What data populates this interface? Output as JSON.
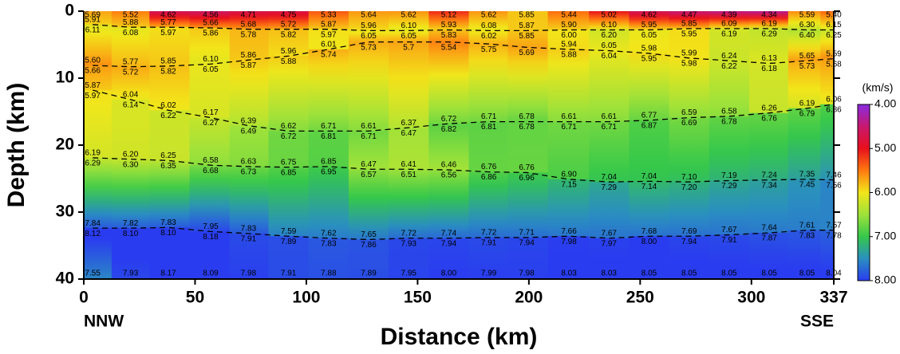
{
  "chart_data": {
    "type": "velocity-section",
    "xlabel": "Distance (km)",
    "ylabel": "Depth (km)",
    "end_labels": [
      "NNW",
      "SSE"
    ],
    "xlim": [
      0,
      337
    ],
    "xticks": [
      0,
      50,
      100,
      150,
      200,
      250,
      300,
      337
    ],
    "ylim": [
      0,
      40
    ],
    "yticks": [
      0,
      10,
      20,
      30,
      40
    ],
    "interface_style": "dashed",
    "colorbar": {
      "label": "(km/s)",
      "lim": [
        4,
        8
      ],
      "ticks": [
        {
          "value": 4,
          "label": "4.00"
        },
        {
          "value": 5,
          "label": "5.00"
        },
        {
          "value": 6,
          "label": "6.00"
        },
        {
          "value": 7,
          "label": "7.00"
        },
        {
          "value": 8,
          "label": "8.00"
        }
      ],
      "colors": [
        "#8a2be2",
        "#c8186e",
        "#e8101c",
        "#ff7a10",
        "#f2e61a",
        "#9ee23a",
        "#35c84a",
        "#2a8fc0",
        "#2a3cf0"
      ]
    },
    "x": [
      4,
      21,
      38,
      57,
      74,
      92,
      110,
      128,
      146,
      164,
      182,
      199,
      218,
      236,
      254,
      272,
      290,
      308,
      325,
      337
    ],
    "surface": {
      "values": [
        5.69,
        5.52,
        4.62,
        4.56,
        4.71,
        4.75,
        5.33,
        5.64,
        5.62,
        5.12,
        5.62,
        5.85,
        5.44,
        5.02,
        4.62,
        4.47,
        4.39,
        4.34,
        5.59,
        5.4
      ],
      "value_labels": [
        "5.69",
        "5.52",
        "4.62",
        "4.56",
        "4.71",
        "4.75",
        "5.33",
        "5.64",
        "5.62",
        "5.12",
        "5.62",
        "5.85",
        "5.44",
        "5.02",
        "4.62",
        "4.47",
        "4.39",
        "4.34",
        "5.59",
        "5.40"
      ]
    },
    "interfaces": [
      {
        "depths": [
          2.0,
          2.4,
          2.4,
          2.5,
          2.7,
          2.7,
          2.7,
          2.9,
          2.9,
          2.8,
          2.9,
          2.9,
          2.8,
          2.8,
          2.8,
          2.6,
          2.6,
          2.6,
          2.8,
          2.8
        ],
        "above": {
          "values": [
            5.91,
            5.88,
            5.77,
            5.66,
            5.68,
            5.72,
            5.87,
            5.96,
            6.1,
            5.93,
            6.08,
            5.87,
            5.9,
            6.1,
            5.95,
            5.85,
            6.09,
            6.19,
            6.3,
            6.15
          ],
          "value_labels": [
            "5.91",
            "5.88",
            "5.77",
            "5.66",
            "5.68",
            "5.72",
            "5.87",
            "5.96",
            "6.10",
            "5.93",
            "6.08",
            "5.87",
            "5.90",
            "6.10",
            "5.95",
            "5.85",
            "6.09",
            "6.19",
            "6.30",
            "6.15"
          ]
        },
        "below": {
          "values": [
            6.11,
            6.08,
            5.97,
            5.86,
            5.78,
            5.82,
            5.97,
            6.05,
            6.05,
            5.83,
            6.02,
            5.85,
            6.0,
            6.2,
            6.05,
            5.95,
            6.19,
            6.29,
            6.4,
            6.25
          ],
          "value_labels": [
            "6.11",
            "6.08",
            "5.97",
            "5.86",
            "5.78",
            "5.82",
            "5.97",
            "6.05",
            "6.05",
            "5.83",
            "6.02",
            "5.85",
            "6.00",
            "6.20",
            "6.05",
            "5.95",
            "6.19",
            "6.29",
            "6.40",
            "6.25"
          ]
        }
      },
      {
        "depths": [
          8.1,
          8.3,
          8.2,
          7.9,
          7.3,
          6.7,
          5.7,
          4.6,
          4.6,
          4.6,
          4.9,
          5.4,
          5.7,
          5.9,
          6.3,
          7.0,
          7.4,
          7.8,
          7.4,
          7.1
        ],
        "above": {
          "values": [
            5.6,
            5.77,
            5.85,
            6.1,
            5.86,
            5.96,
            6.01,
            null,
            null,
            null,
            null,
            null,
            5.94,
            6.05,
            5.98,
            5.99,
            6.24,
            6.13,
            5.65,
            5.59
          ],
          "value_labels": [
            "5.60",
            "5.77",
            "5.85",
            "6.10",
            "5.86",
            "5.96",
            "6.01",
            null,
            null,
            null,
            null,
            null,
            "5.94",
            "6.05",
            "5.98",
            "5.99",
            "6.24",
            "6.13",
            "5.65",
            "5.59"
          ]
        },
        "below": {
          "values": [
            5.66,
            5.72,
            5.82,
            6.05,
            5.87,
            5.88,
            5.74,
            5.73,
            5.7,
            5.54,
            5.75,
            5.69,
            5.88,
            6.04,
            5.95,
            5.98,
            6.22,
            6.18,
            5.73,
            5.68
          ],
          "value_labels": [
            "5.66",
            "5.72",
            "5.82",
            "6.05",
            "5.87",
            "5.88",
            "5.74",
            "5.73",
            "5.7",
            "5.54",
            "5.75",
            "5.69",
            "5.88",
            "6.04",
            "5.95",
            "5.98",
            "6.22",
            "6.18",
            "5.73",
            "5.68"
          ]
        }
      },
      {
        "depths": [
          11.8,
          13.2,
          14.8,
          15.9,
          17.1,
          17.9,
          17.9,
          17.9,
          17.4,
          16.8,
          16.5,
          16.5,
          16.5,
          16.5,
          16.3,
          15.9,
          15.7,
          15.2,
          14.5,
          13.9
        ],
        "above": {
          "values": [
            5.87,
            6.04,
            6.02,
            6.17,
            6.39,
            6.62,
            6.71,
            6.61,
            6.37,
            6.72,
            6.71,
            6.78,
            6.61,
            6.61,
            6.77,
            6.59,
            6.58,
            6.26,
            6.19,
            6.06
          ],
          "value_labels": [
            "5.87",
            "6.04",
            "6.02",
            "6.17",
            "6.39",
            "6.62",
            "6.71",
            "6.61",
            "6.37",
            "6.72",
            "6.71",
            "6.78",
            "6.61",
            "6.61",
            "6.77",
            "6.59",
            "6.58",
            "6.26",
            "6.19",
            "6.06"
          ]
        },
        "below": {
          "values": [
            5.97,
            6.14,
            6.22,
            6.27,
            6.49,
            6.72,
            6.81,
            6.71,
            6.47,
            6.82,
            6.81,
            6.78,
            6.71,
            6.71,
            6.87,
            6.69,
            6.78,
            6.76,
            6.79,
            6.86
          ],
          "value_labels": [
            "5.97",
            "6.14",
            "6.22",
            "6.27",
            "6.49",
            "6.72",
            "6.81",
            "6.71",
            "6.47",
            "6.82",
            "6.81",
            "6.78",
            "6.71",
            "6.71",
            "6.87",
            "6.69",
            "6.78",
            "6.76",
            "6.79",
            "6.86"
          ]
        }
      },
      {
        "depths": [
          21.9,
          22.1,
          22.3,
          23.0,
          23.2,
          23.3,
          23.2,
          23.6,
          23.6,
          23.7,
          24.0,
          24.1,
          25.1,
          25.5,
          25.4,
          25.5,
          25.3,
          25.2,
          25.1,
          25.2
        ],
        "above": {
          "values": [
            6.19,
            6.2,
            6.25,
            6.58,
            6.63,
            6.75,
            6.85,
            6.47,
            6.41,
            6.46,
            6.76,
            6.76,
            6.9,
            7.04,
            7.04,
            7.1,
            7.19,
            7.24,
            7.35,
            7.46
          ],
          "value_labels": [
            "6.19",
            "6.20",
            "6.25",
            "6.58",
            "6.63",
            "6.75",
            "6.85",
            "6.47",
            "6.41",
            "6.46",
            "6.76",
            "6.76",
            "6.90",
            "7.04",
            "7.04",
            "7.10",
            "7.19",
            "7.24",
            "7.35",
            "7.46"
          ]
        },
        "below": {
          "values": [
            6.29,
            6.3,
            6.35,
            6.68,
            6.73,
            6.85,
            6.95,
            6.57,
            6.51,
            6.56,
            6.86,
            6.96,
            7.15,
            7.29,
            7.14,
            7.2,
            7.29,
            7.34,
            7.45,
            7.56
          ],
          "value_labels": [
            "6.29",
            "6.30",
            "6.35",
            "6.68",
            "6.73",
            "6.85",
            "6.95",
            "6.57",
            "6.51",
            "6.56",
            "6.86",
            "6.96",
            "7.15",
            "7.29",
            "7.14",
            "7.20",
            "7.29",
            "7.34",
            "7.45",
            "7.56"
          ]
        }
      },
      {
        "depths": [
          32.4,
          32.4,
          32.3,
          32.9,
          33.2,
          33.6,
          33.9,
          34.1,
          33.9,
          33.9,
          33.8,
          33.8,
          33.6,
          33.9,
          33.6,
          33.6,
          33.4,
          33.1,
          32.7,
          32.7
        ],
        "above": {
          "values": [
            7.84,
            7.82,
            7.83,
            7.95,
            7.83,
            7.59,
            7.62,
            7.65,
            7.72,
            7.74,
            7.72,
            7.71,
            7.66,
            7.67,
            7.68,
            7.69,
            7.67,
            7.64,
            7.61,
            7.57
          ],
          "value_labels": [
            "7.84",
            "7.82",
            "7.83",
            "7.95",
            "7.83",
            "7.59",
            "7.62",
            "7.65",
            "7.72",
            "7.74",
            "7.72",
            "7.71",
            "7.66",
            "7.67",
            "7.68",
            "7.69",
            "7.67",
            "7.64",
            "7.61",
            "7.57"
          ]
        },
        "below": {
          "values": [
            8.12,
            8.1,
            8.1,
            8.18,
            7.91,
            7.89,
            7.83,
            7.86,
            7.93,
            7.94,
            7.91,
            7.94,
            7.98,
            7.97,
            8.0,
            7.94,
            7.91,
            7.87,
            7.83,
            7.78
          ],
          "value_labels": [
            "8.12",
            "8.10",
            "8.10",
            "8.18",
            "7.91",
            "7.89",
            "7.83",
            "7.86",
            "7.93",
            "7.94",
            "7.91",
            "7.94",
            "7.98",
            "7.97",
            "8.00",
            "7.94",
            "7.91",
            "7.87",
            "7.83",
            "7.78"
          ]
        }
      }
    ],
    "base": {
      "values": [
        7.55,
        7.93,
        8.17,
        8.09,
        7.98,
        7.91,
        7.88,
        7.89,
        7.95,
        8.0,
        7.99,
        7.98,
        8.03,
        8.03,
        8.05,
        8.05,
        8.05,
        8.05,
        8.05,
        8.04
      ],
      "value_labels": [
        "7.55",
        "7.93",
        "8.17",
        "8.09",
        "7.98",
        "7.91",
        "7.88",
        "7.89",
        "7.95",
        "8.00",
        "7.99",
        "7.98",
        "8.03",
        "8.03",
        "8.05",
        "8.05",
        "8.05",
        "8.05",
        "8.05",
        "8.04"
      ]
    }
  }
}
